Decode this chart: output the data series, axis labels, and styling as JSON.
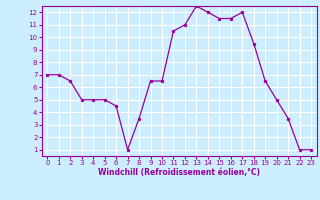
{
  "x": [
    0,
    1,
    2,
    3,
    4,
    5,
    6,
    7,
    8,
    9,
    10,
    11,
    12,
    13,
    14,
    15,
    16,
    17,
    18,
    19,
    20,
    21,
    22,
    23
  ],
  "y": [
    7,
    7,
    6.5,
    5,
    5,
    5,
    4.5,
    1,
    3.5,
    6.5,
    6.5,
    10.5,
    11,
    12.5,
    12,
    11.5,
    11.5,
    12,
    9.5,
    6.5,
    5,
    3.5,
    1,
    1
  ],
  "line_color": "#990099",
  "marker_color": "#990099",
  "bg_color": "#cceeff",
  "grid_color": "#ffffff",
  "xlabel": "Windchill (Refroidissement éolien,°C)",
  "xlabel_color": "#990099",
  "tick_color": "#990099",
  "ylim": [
    0.5,
    12.5
  ],
  "xlim": [
    -0.5,
    23.5
  ],
  "yticks": [
    1,
    2,
    3,
    4,
    5,
    6,
    7,
    8,
    9,
    10,
    11,
    12
  ],
  "xticks": [
    0,
    1,
    2,
    3,
    4,
    5,
    6,
    7,
    8,
    9,
    10,
    11,
    12,
    13,
    14,
    15,
    16,
    17,
    18,
    19,
    20,
    21,
    22,
    23
  ]
}
